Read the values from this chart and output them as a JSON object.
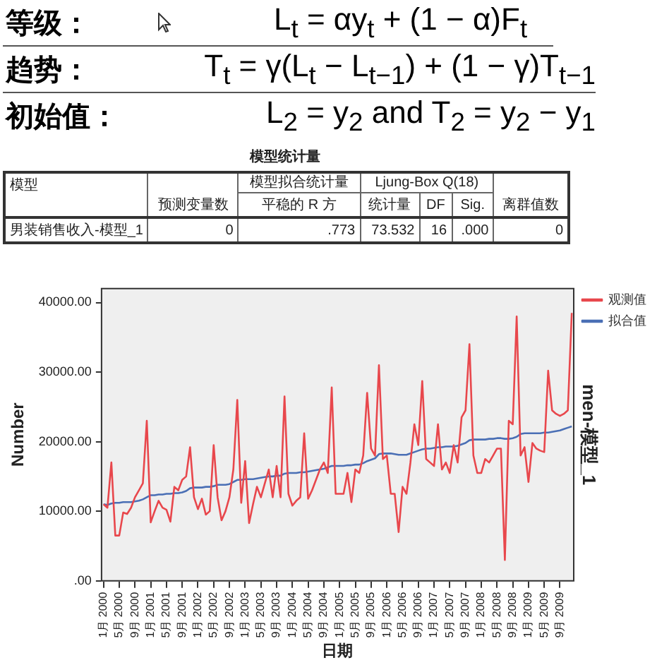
{
  "chart_data": [
    {
      "type": "other",
      "annotations": [
        "等级：",
        "L$_{t}$ = αy$_{t}$ + (1 − α)F$_{t}$",
        "趋势：",
        "T$_{t}$ = γ(L$_{t}$ − L$_{t−1}$) + (1 − γ)T$_{t−1}$",
        "初始值：",
        "L$_{2}$ = y$_{2}$  and T$_{2}$ = y$_{2}$ − y$_{1}$"
      ]
    },
    {
      "type": "other",
      "title": "模型统计量",
      "annotations": [
        "模型",
        "预测变量数",
        "模型拟合统计量",
        "平稳的 R 方",
        "Ljung-Box Q(18)",
        "统计量",
        "DF",
        "Sig.",
        "离群值数",
        "男装销售收入-模型_1",
        "0",
        ".773",
        "73.532",
        "16",
        ".000",
        "0"
      ]
    },
    {
      "type": "line",
      "xlabel": "日期",
      "ylabel": "Number",
      "annotations": [
        "men-模型_1"
      ],
      "legend": "top right",
      "marker": "none",
      "line_style": "solid",
      "grid": false,
      "categories": [
        "1月 2000",
        null,
        null,
        null,
        "5月 2000",
        null,
        null,
        null,
        "9月 2000",
        null,
        null,
        null,
        "1月 2001",
        null,
        null,
        null,
        "5月 2001",
        null,
        null,
        null,
        "9月 2001",
        null,
        null,
        null,
        "1月 2002",
        null,
        null,
        null,
        "5月 2002",
        null,
        null,
        null,
        "9月 2002",
        null,
        null,
        null,
        "1月 2003",
        null,
        null,
        null,
        "5月 2003",
        null,
        null,
        null,
        "9月 2003",
        null,
        null,
        null,
        "1月 2004",
        null,
        null,
        null,
        "5月 2004",
        null,
        null,
        null,
        "9月 2004",
        null,
        null,
        null,
        "1月 2005",
        null,
        null,
        null,
        "5月 2005",
        null,
        null,
        null,
        "9月 2005",
        null,
        null,
        null,
        "1月 2006",
        null,
        null,
        null,
        "5月 2006",
        null,
        null,
        null,
        "9月 2006",
        null,
        null,
        null,
        "1月 2007",
        null,
        null,
        null,
        "5月 2007",
        null,
        null,
        null,
        "9月 2007",
        null,
        null,
        null,
        "1月 2008",
        null,
        null,
        null,
        "5月 2008",
        null,
        null,
        null,
        "9月 2008",
        null,
        null,
        null,
        "1月 2009",
        null,
        null,
        null,
        "5月 2009",
        null,
        null,
        null,
        "9月 2009",
        null,
        null,
        null
      ],
      "ylim": [
        0,
        42000
      ],
      "yticks": [
        {
          "value": 0,
          "label": ".00"
        },
        {
          "value": 10000,
          "label": "10000.00"
        },
        {
          "value": 20000,
          "label": "20000.00"
        },
        {
          "value": 30000,
          "label": "30000.00"
        },
        {
          "value": 40000,
          "label": "40000.00"
        }
      ],
      "series": [
        {
          "name": "观测值",
          "color": "#e8474c",
          "values": [
            11000,
            10500,
            17000,
            6500,
            6500,
            9800,
            9600,
            10500,
            12000,
            13000,
            14000,
            23000,
            8400,
            10000,
            11500,
            10500,
            10200,
            8500,
            13500,
            13000,
            14500,
            15000,
            19200,
            12000,
            10300,
            11800,
            9500,
            10000,
            19500,
            12000,
            8700,
            10000,
            12000,
            16000,
            26000,
            11200,
            17200,
            8300,
            11000,
            13500,
            12000,
            14000,
            16000,
            12000,
            16500,
            12000,
            26500,
            12500,
            10800,
            11500,
            12000,
            21200,
            11800,
            13000,
            14500,
            16000,
            17000,
            15500,
            27800,
            12500,
            12500,
            12500,
            15500,
            11300,
            16000,
            15500,
            18000,
            27000,
            19000,
            18000,
            31000,
            17500,
            18000,
            12500,
            12500,
            7000,
            13500,
            12500,
            17000,
            22500,
            19500,
            28700,
            17500,
            17000,
            16500,
            22500,
            16000,
            17000,
            15500,
            19500,
            17000,
            23500,
            24500,
            34000,
            18000,
            15500,
            15500,
            17500,
            17000,
            18000,
            19000,
            19000,
            3000,
            23000,
            22500,
            38000,
            18000,
            19200,
            14200,
            19800,
            19000,
            18700,
            18500,
            30200,
            24500,
            24000,
            23700,
            24000,
            24500,
            38500
          ]
        },
        {
          "name": "拟合值",
          "color": "#4a6fb5",
          "values": [
            11000,
            10900,
            11100,
            11200,
            11200,
            11300,
            11300,
            11300,
            11400,
            11500,
            11700,
            12000,
            12300,
            12300,
            12400,
            12400,
            12500,
            12500,
            12600,
            12600,
            12700,
            12900,
            13300,
            13400,
            13400,
            13400,
            13500,
            13500,
            13600,
            13800,
            13800,
            13800,
            13900,
            14200,
            14500,
            14500,
            14600,
            14600,
            14600,
            14700,
            14800,
            14900,
            15000,
            15000,
            15100,
            15100,
            15400,
            15500,
            15500,
            15500,
            15600,
            15600,
            15700,
            15800,
            15900,
            16000,
            16100,
            16300,
            16500,
            16500,
            16500,
            16500,
            16600,
            16600,
            16700,
            16700,
            16900,
            17200,
            17400,
            17600,
            18200,
            18300,
            18300,
            18300,
            18200,
            18100,
            18100,
            18100,
            18300,
            18500,
            18700,
            18900,
            19000,
            19000,
            19100,
            19200,
            19200,
            19300,
            19300,
            19300,
            19400,
            19600,
            19800,
            20200,
            20300,
            20300,
            20300,
            20300,
            20400,
            20400,
            20500,
            20500,
            20400,
            20400,
            20500,
            20700,
            21100,
            21200,
            21200,
            21200,
            21200,
            21200,
            21300,
            21300,
            21400,
            21500,
            21600,
            21800,
            22000,
            22200
          ]
        }
      ]
    }
  ]
}
